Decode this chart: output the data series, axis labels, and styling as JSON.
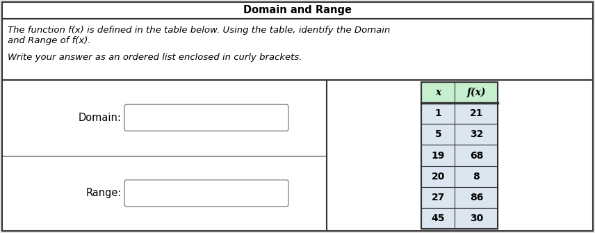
{
  "title": "Domain and Range",
  "instruction_line1": "The function f(x) is defined in the table below. Using the table, identify the Domain",
  "instruction_line2": "and Range of f(x).",
  "instruction_line3": "Write your answer as an ordered list enclosed in curly brackets.",
  "domain_label": "Domain:",
  "range_label": "Range:",
  "table_header_x": "x",
  "table_header_fx": "f(x)",
  "table_data": [
    [
      1,
      21
    ],
    [
      5,
      32
    ],
    [
      19,
      68
    ],
    [
      20,
      8
    ],
    [
      27,
      86
    ],
    [
      45,
      30
    ]
  ],
  "bg_color": "#e8e8e8",
  "table_header_bg": "#c6efce",
  "table_data_bg": "#dce6f1",
  "table_cell_bg": "#ffffff",
  "outer_border_color": "#333333",
  "font_size_title": 10.5,
  "font_size_body": 9.5,
  "font_size_table": 10
}
